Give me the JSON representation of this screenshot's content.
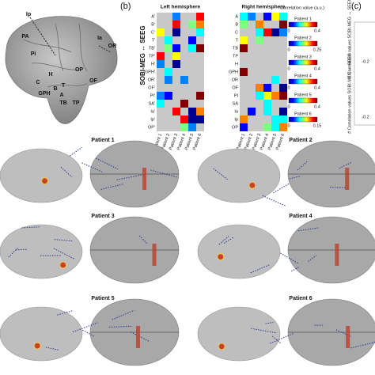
{
  "panel_b": {
    "label": "(b)",
    "axis_label": "SOBI-MEG ↔ SEEG",
    "left": {
      "title": "Left hemisphere",
      "rows": [
        "A'",
        "B'",
        "C'",
        "T'",
        "TB'",
        "TP'",
        "H'",
        "GPH'",
        "OR'",
        "OF'",
        "PI'",
        "SA'",
        "Ia'",
        "Ip'",
        "OP'"
      ]
    },
    "right": {
      "title": "Right hemisphere",
      "rows": [
        "A",
        "B",
        "C",
        "T",
        "TB",
        "TP",
        "H",
        "GPH",
        "OR",
        "OF",
        "PI",
        "SA",
        "Ia",
        "Ip",
        "OP"
      ]
    },
    "columns": [
      "Patient 1",
      "Patient 2",
      "Patient 3",
      "Patient 4",
      "Patient 5",
      "Patient 6"
    ],
    "colorbar": {
      "title": "Correlation value (a.u.)",
      "scales": [
        {
          "name": "Patient 1",
          "min": "0",
          "max": "0.4"
        },
        {
          "name": "Patient 2",
          "min": "0",
          "max": "0.25"
        },
        {
          "name": "Patient 3",
          "min": "0",
          "max": "0.4"
        },
        {
          "name": "Patient 4",
          "min": "0",
          "max": "0.4"
        },
        {
          "name": "Patient 5",
          "min": "0",
          "max": "0.4"
        },
        {
          "name": "Patient 6",
          "min": "0",
          "max": "0.15"
        }
      ]
    }
  },
  "panel_c": {
    "label": "(c)",
    "axis_label": "# Correlation values SOBI-MEG ↔ SEEG",
    "tick": "-0.2"
  },
  "brain_labels": [
    "Ip",
    "PA",
    "Pi",
    "Ia",
    "OR",
    "OP",
    "OF",
    "H",
    "C",
    "GPH",
    "B",
    "A",
    "T",
    "TB",
    "TP"
  ],
  "patients": [
    "Patient 1",
    "Patient 2",
    "Patient 3",
    "Patient 4",
    "Patient 5",
    "Patient 6"
  ]
}
